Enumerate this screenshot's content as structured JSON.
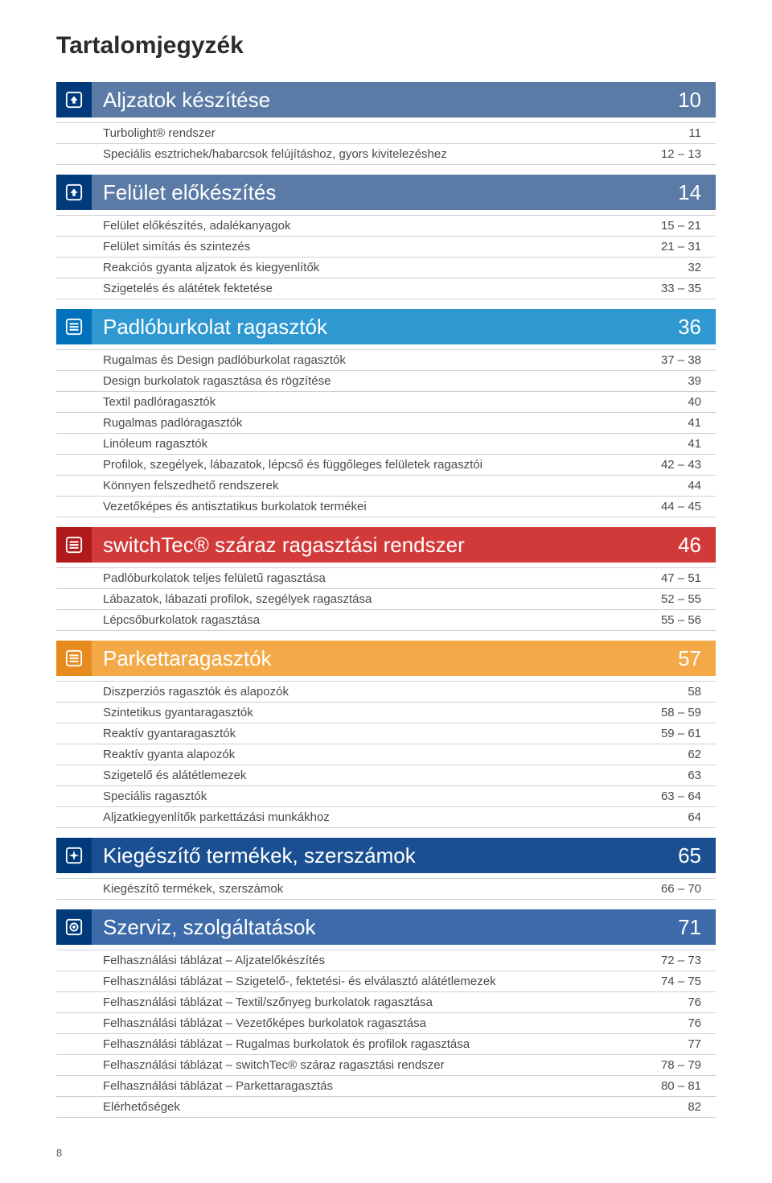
{
  "page_title": "Tartalomjegyzék",
  "page_number": "8",
  "colors": {
    "divider": "#cfcfcf",
    "text": "#4a4a4a",
    "title": "#2b2b2b"
  },
  "sections": [
    {
      "id": "aljzatok",
      "title": "Aljzatok készítése",
      "page": "10",
      "icon": "arrow-up",
      "icon_bg": "#003a7a",
      "bar_bg": "#5b7aa5",
      "entries": [
        {
          "label": "Turbolight® rendszer",
          "page": "11"
        },
        {
          "label": "Speciális esztrichek/habarcsok felújításhoz, gyors kivitelezéshez",
          "page": "12 – 13"
        }
      ]
    },
    {
      "id": "felulet",
      "title": "Felület előkészítés",
      "page": "14",
      "icon": "arrow-up",
      "icon_bg": "#003a7a",
      "bar_bg": "#5b7aa5",
      "entries": [
        {
          "label": "Felület előkészítés, adalékanyagok",
          "page": "15 – 21"
        },
        {
          "label": "Felület simítás és szintezés",
          "page": "21 – 31"
        },
        {
          "label": "Reakciós gyanta aljzatok és kiegyenlítők",
          "page": "32"
        },
        {
          "label": "Szigetelés és alátétek fektetése",
          "page": "33 – 35"
        }
      ]
    },
    {
      "id": "padlo",
      "title": "Padlóburkolat ragasztók",
      "page": "36",
      "icon": "list",
      "icon_bg": "#0070ba",
      "bar_bg": "#2f98d1",
      "entries": [
        {
          "label": "Rugalmas és Design padlóburkolat ragasztók",
          "page": "37 – 38"
        },
        {
          "label": "Design burkolatok ragasztása és rögzítése",
          "page": "39"
        },
        {
          "label": "Textil padlóragasztók",
          "page": "40"
        },
        {
          "label": "Rugalmas padlóragasztók",
          "page": "41"
        },
        {
          "label": "Linóleum ragasztók",
          "page": "41"
        },
        {
          "label": "Profilok, szegélyek, lábazatok, lépcső és függőleges felületek ragasztói",
          "page": "42 – 43"
        },
        {
          "label": "Könnyen felszedhető rendszerek",
          "page": "44"
        },
        {
          "label": "Vezetőképes és antisztatikus burkolatok termékei",
          "page": "44 – 45"
        }
      ]
    },
    {
      "id": "switchtec",
      "title": "switchTec® száraz ragasztási rendszer",
      "page": "46",
      "icon": "list",
      "icon_bg": "#b11a1a",
      "bar_bg": "#d23a3a",
      "entries": [
        {
          "label": "Padlóburkolatok teljes felületű ragasztása",
          "page": "47 – 51"
        },
        {
          "label": "Lábazatok, lábazati profilok, szegélyek ragasztása",
          "page": "52 – 55"
        },
        {
          "label": "Lépcsőburkolatok ragasztása",
          "page": "55 – 56"
        }
      ]
    },
    {
      "id": "parketta",
      "title": "Parkettaragasztók",
      "page": "57",
      "icon": "list",
      "icon_bg": "#e78b1f",
      "bar_bg": "#f3a948",
      "entries": [
        {
          "label": "Diszperziós ragasztók és alapozók",
          "page": "58"
        },
        {
          "label": "Szintetikus gyantaragasztók",
          "page": "58 – 59"
        },
        {
          "label": "Reaktív gyantaragasztók",
          "page": "59 – 61"
        },
        {
          "label": "Reaktív gyanta alapozók",
          "page": "62"
        },
        {
          "label": "Szigetelő és alátétlemezek",
          "page": "63"
        },
        {
          "label": "Speciális ragasztók",
          "page": "63 – 64"
        },
        {
          "label": "Aljzatkiegyenlítők parkettázási munkákhoz",
          "page": "64"
        }
      ]
    },
    {
      "id": "kieg",
      "title": "Kiegészítő termékek, szerszámok",
      "page": "65",
      "icon": "sparkle",
      "icon_bg": "#003a7a",
      "bar_bg": "#1a4f92",
      "entries": [
        {
          "label": "Kiegészítő termékek, szerszámok",
          "page": "66 – 70"
        }
      ]
    },
    {
      "id": "szerviz",
      "title": "Szerviz, szolgáltatások",
      "page": "71",
      "icon": "target",
      "icon_bg": "#003a7a",
      "bar_bg": "#3d6aa8",
      "entries": [
        {
          "label": "Felhasználási táblázat – Aljzatelőkészítés",
          "page": "72 – 73"
        },
        {
          "label": "Felhasználási táblázat – Szigetelő-, fektetési- és elválasztó alátétlemezek",
          "page": "74 – 75"
        },
        {
          "label": "Felhasználási táblázat – Textil/szőnyeg burkolatok ragasztása",
          "page": "76"
        },
        {
          "label": "Felhasználási táblázat – Vezetőképes burkolatok ragasztása",
          "page": "76"
        },
        {
          "label": "Felhasználási táblázat – Rugalmas burkolatok és profilok ragasztása",
          "page": "77"
        },
        {
          "label": "Felhasználási táblázat – switchTec® száraz ragasztási rendszer",
          "page": "78 – 79"
        },
        {
          "label": "Felhasználási táblázat – Parkettaragasztás",
          "page": "80 – 81"
        },
        {
          "label": "Elérhetőségek",
          "page": "82"
        }
      ]
    }
  ]
}
